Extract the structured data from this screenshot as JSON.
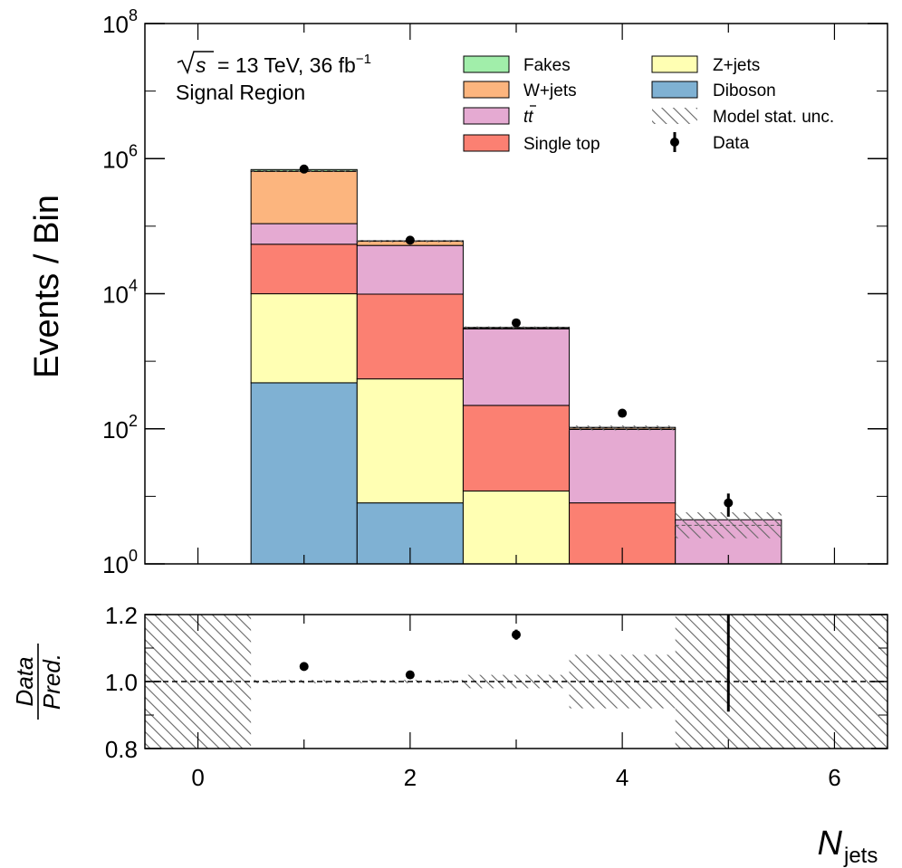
{
  "chart_data": [
    {
      "type": "bar",
      "stacked": true,
      "yscale": "log",
      "ylabel": "Events / Bin",
      "ylim": [
        1,
        100000000
      ],
      "xlim": [
        -0.5,
        6.5
      ],
      "yticks": [
        {
          "value": 1,
          "base": "10",
          "exp": "0"
        },
        {
          "value": 100,
          "base": "10",
          "exp": "2"
        },
        {
          "value": 10000,
          "base": "10",
          "exp": "4"
        },
        {
          "value": 1000000,
          "base": "10",
          "exp": "6"
        },
        {
          "value": 100000000,
          "base": "10",
          "exp": "8"
        }
      ],
      "annotation": {
        "sqrt": "s",
        "energy": "= 13 TeV, 36 fb",
        "lumi_exp": "−1",
        "region": "Signal Region"
      },
      "categories": [
        1,
        2,
        3,
        4,
        5
      ],
      "series": [
        {
          "name": "Diboson",
          "color": "#7fb1d3",
          "values": [
            480,
            8,
            0,
            0,
            0
          ]
        },
        {
          "name": "Z+jets",
          "color": "#ffffb3",
          "values": [
            9500,
            540,
            12,
            0,
            0
          ]
        },
        {
          "name": "Single top",
          "color": "#fb8072",
          "values": [
            44000,
            9300,
            210,
            8,
            0
          ]
        },
        {
          "name": "t",
          "name_bar": "t",
          "color": "#e5aad2",
          "values": [
            55000,
            42000,
            2800,
            90,
            4.5
          ]
        },
        {
          "name": "W+jets",
          "color": "#fcb57e",
          "values": [
            540000,
            8000,
            100,
            5,
            0
          ]
        },
        {
          "name": "Fakes",
          "color": "#a1eeaa",
          "values": [
            40000,
            1000,
            50,
            2,
            0
          ]
        }
      ],
      "stat_unc_label": "Model stat. unc.",
      "stat_unc": [
        {
          "x": 1,
          "lo": 662000,
          "hi": 674000
        },
        {
          "x": 2,
          "lo": 60300,
          "hi": 61300
        },
        {
          "x": 3,
          "lo": 3050,
          "hi": 3280
        },
        {
          "x": 4,
          "lo": 95,
          "hi": 112
        },
        {
          "x": 5,
          "lo": 2.4,
          "hi": 5.8
        }
      ],
      "data_label": "Data",
      "data": [
        {
          "x": 1,
          "y": 700000,
          "err": 800
        },
        {
          "x": 2,
          "y": 62000,
          "err": 250
        },
        {
          "x": 3,
          "y": 3700,
          "err": 60
        },
        {
          "x": 4,
          "y": 170,
          "err": 13
        },
        {
          "x": 5,
          "y": 8,
          "err": 3
        }
      ],
      "legend_placement": "top-right"
    },
    {
      "type": "scatter",
      "ylabel_num": "Data",
      "ylabel_den": "Pred.",
      "xlabel": "N",
      "xlabel_sub": "jets",
      "xlim": [
        -0.5,
        6.5
      ],
      "ylim": [
        0.8,
        1.2
      ],
      "xticks": [
        "0",
        "2",
        "4",
        "6"
      ],
      "yticks": [
        "0.8",
        "1.0",
        "1.2"
      ],
      "reference_line": 1.0,
      "ratio_points": [
        {
          "x": 1,
          "y": 1.045,
          "err": 0.003
        },
        {
          "x": 2,
          "y": 1.02,
          "err": 0.006
        },
        {
          "x": 3,
          "y": 1.14,
          "err": 0.015
        },
        {
          "x": 5,
          "y": 1.21,
          "err": 0.3
        }
      ],
      "unc_band": [
        {
          "x0": -0.5,
          "x1": 0.5,
          "lo": 0.8,
          "hi": 1.2
        },
        {
          "x0": 0.5,
          "x1": 1.5,
          "lo": 0.995,
          "hi": 1.005
        },
        {
          "x0": 1.5,
          "x1": 2.5,
          "lo": 0.995,
          "hi": 1.005
        },
        {
          "x0": 2.5,
          "x1": 3.5,
          "lo": 0.98,
          "hi": 1.02
        },
        {
          "x0": 3.5,
          "x1": 4.5,
          "lo": 0.92,
          "hi": 1.08
        },
        {
          "x0": 4.5,
          "x1": 6.5,
          "lo": 0.8,
          "hi": 1.2
        }
      ]
    }
  ]
}
